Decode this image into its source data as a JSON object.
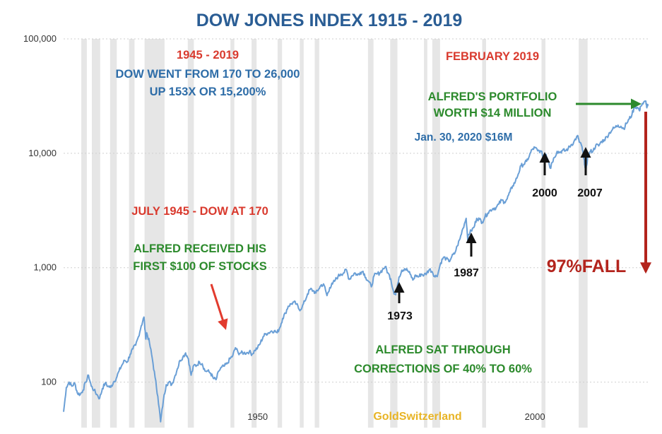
{
  "chart_data": {
    "type": "line",
    "title": "DOW JONES INDEX  1915 - 2019",
    "y_scale": "log",
    "ylim": [
      40,
      100000
    ],
    "xlim": [
      1915,
      2020.5
    ],
    "yticks": [
      {
        "value": 100,
        "label": "100"
      },
      {
        "value": 1000,
        "label": "1,000"
      },
      {
        "value": 10000,
        "label": "10,000"
      },
      {
        "value": 100000,
        "label": "100,000"
      }
    ],
    "xticks": [
      {
        "value": 1950,
        "label": "1950"
      },
      {
        "value": 2000,
        "label": "2000"
      }
    ],
    "grid": true,
    "line_color": "#6a9fd6",
    "series": [
      {
        "points": [
          [
            1915.0,
            55
          ],
          [
            1915.5,
            90
          ],
          [
            1916.0,
            100
          ],
          [
            1916.5,
            92
          ],
          [
            1917.0,
            98
          ],
          [
            1917.5,
            80
          ],
          [
            1918.0,
            78
          ],
          [
            1918.5,
            85
          ],
          [
            1919.0,
            100
          ],
          [
            1919.5,
            115
          ],
          [
            1920.0,
            92
          ],
          [
            1920.5,
            85
          ],
          [
            1921.0,
            78
          ],
          [
            1921.5,
            72
          ],
          [
            1922.0,
            88
          ],
          [
            1922.5,
            98
          ],
          [
            1923.0,
            92
          ],
          [
            1923.5,
            90
          ],
          [
            1924.0,
            100
          ],
          [
            1924.5,
            108
          ],
          [
            1925.0,
            125
          ],
          [
            1925.5,
            140
          ],
          [
            1926.0,
            155
          ],
          [
            1926.5,
            150
          ],
          [
            1927.0,
            175
          ],
          [
            1927.5,
            195
          ],
          [
            1928.0,
            210
          ],
          [
            1928.5,
            250
          ],
          [
            1929.0,
            310
          ],
          [
            1929.5,
            370
          ],
          [
            1929.8,
            240
          ],
          [
            1930.0,
            270
          ],
          [
            1930.5,
            220
          ],
          [
            1931.0,
            160
          ],
          [
            1931.5,
            110
          ],
          [
            1932.0,
            75
          ],
          [
            1932.5,
            45
          ],
          [
            1933.0,
            70
          ],
          [
            1933.5,
            95
          ],
          [
            1934.0,
            100
          ],
          [
            1934.5,
            95
          ],
          [
            1935.0,
            110
          ],
          [
            1935.5,
            130
          ],
          [
            1936.0,
            155
          ],
          [
            1936.5,
            165
          ],
          [
            1937.0,
            180
          ],
          [
            1937.5,
            160
          ],
          [
            1938.0,
            115
          ],
          [
            1938.5,
            140
          ],
          [
            1939.0,
            140
          ],
          [
            1939.5,
            150
          ],
          [
            1940.0,
            145
          ],
          [
            1940.5,
            125
          ],
          [
            1941.0,
            125
          ],
          [
            1941.5,
            120
          ],
          [
            1942.0,
            108
          ],
          [
            1942.5,
            105
          ],
          [
            1943.0,
            125
          ],
          [
            1943.5,
            135
          ],
          [
            1944.0,
            138
          ],
          [
            1944.5,
            145
          ],
          [
            1945.0,
            160
          ],
          [
            1945.5,
            170
          ],
          [
            1946.0,
            200
          ],
          [
            1946.5,
            180
          ],
          [
            1947.0,
            180
          ],
          [
            1947.5,
            180
          ],
          [
            1948.0,
            180
          ],
          [
            1948.5,
            185
          ],
          [
            1949.0,
            175
          ],
          [
            1949.5,
            190
          ],
          [
            1950.0,
            200
          ],
          [
            1950.5,
            220
          ],
          [
            1951.0,
            250
          ],
          [
            1951.5,
            265
          ],
          [
            1952.0,
            270
          ],
          [
            1952.5,
            280
          ],
          [
            1953.0,
            280
          ],
          [
            1953.5,
            270
          ],
          [
            1954.0,
            300
          ],
          [
            1954.5,
            360
          ],
          [
            1955.0,
            400
          ],
          [
            1955.5,
            460
          ],
          [
            1956.0,
            480
          ],
          [
            1956.5,
            500
          ],
          [
            1957.0,
            480
          ],
          [
            1957.5,
            430
          ],
          [
            1958.0,
            450
          ],
          [
            1958.5,
            510
          ],
          [
            1959.0,
            590
          ],
          [
            1959.5,
            650
          ],
          [
            1960.0,
            630
          ],
          [
            1960.5,
            600
          ],
          [
            1961.0,
            650
          ],
          [
            1961.5,
            710
          ],
          [
            1962.0,
            700
          ],
          [
            1962.5,
            570
          ],
          [
            1963.0,
            670
          ],
          [
            1963.5,
            720
          ],
          [
            1964.0,
            780
          ],
          [
            1964.5,
            840
          ],
          [
            1965.0,
            880
          ],
          [
            1965.5,
            900
          ],
          [
            1966.0,
            960
          ],
          [
            1966.5,
            790
          ],
          [
            1967.0,
            850
          ],
          [
            1967.5,
            900
          ],
          [
            1968.0,
            860
          ],
          [
            1968.5,
            910
          ],
          [
            1969.0,
            930
          ],
          [
            1969.5,
            820
          ],
          [
            1970.0,
            760
          ],
          [
            1970.5,
            680
          ],
          [
            1971.0,
            850
          ],
          [
            1971.5,
            880
          ],
          [
            1972.0,
            900
          ],
          [
            1972.5,
            960
          ],
          [
            1973.0,
            1020
          ],
          [
            1973.5,
            900
          ],
          [
            1974.0,
            800
          ],
          [
            1974.5,
            620
          ],
          [
            1974.9,
            580
          ],
          [
            1975.0,
            640
          ],
          [
            1975.5,
            830
          ],
          [
            1976.0,
            950
          ],
          [
            1976.5,
            980
          ],
          [
            1977.0,
            950
          ],
          [
            1977.5,
            880
          ],
          [
            1978.0,
            780
          ],
          [
            1978.5,
            860
          ],
          [
            1979.0,
            830
          ],
          [
            1979.5,
            880
          ],
          [
            1980.0,
            860
          ],
          [
            1980.5,
            900
          ],
          [
            1981.0,
            970
          ],
          [
            1981.5,
            920
          ],
          [
            1982.0,
            830
          ],
          [
            1982.5,
            880
          ],
          [
            1983.0,
            1100
          ],
          [
            1983.5,
            1230
          ],
          [
            1984.0,
            1200
          ],
          [
            1984.5,
            1130
          ],
          [
            1985.0,
            1250
          ],
          [
            1985.5,
            1320
          ],
          [
            1986.0,
            1550
          ],
          [
            1986.5,
            1800
          ],
          [
            1987.0,
            2200
          ],
          [
            1987.6,
            2700
          ],
          [
            1987.9,
            1750
          ],
          [
            1988.0,
            1950
          ],
          [
            1988.5,
            2100
          ],
          [
            1989.0,
            2250
          ],
          [
            1989.5,
            2700
          ],
          [
            1990.0,
            2650
          ],
          [
            1990.5,
            2500
          ],
          [
            1991.0,
            2800
          ],
          [
            1991.5,
            3000
          ],
          [
            1992.0,
            3200
          ],
          [
            1992.5,
            3300
          ],
          [
            1993.0,
            3350
          ],
          [
            1993.5,
            3600
          ],
          [
            1994.0,
            3900
          ],
          [
            1994.5,
            3750
          ],
          [
            1995.0,
            4000
          ],
          [
            1995.5,
            4600
          ],
          [
            1996.0,
            5200
          ],
          [
            1996.5,
            5700
          ],
          [
            1997.0,
            6600
          ],
          [
            1997.5,
            7800
          ],
          [
            1998.0,
            8000
          ],
          [
            1998.5,
            8500
          ],
          [
            1999.0,
            9500
          ],
          [
            1999.5,
            10800
          ],
          [
            2000.0,
            11200
          ],
          [
            2000.5,
            10500
          ],
          [
            2001.0,
            10500
          ],
          [
            2001.5,
            9500
          ],
          [
            2002.0,
            9800
          ],
          [
            2002.5,
            8500
          ],
          [
            2002.8,
            7400
          ],
          [
            2003.0,
            8200
          ],
          [
            2003.5,
            9200
          ],
          [
            2004.0,
            10400
          ],
          [
            2004.5,
            10200
          ],
          [
            2005.0,
            10600
          ],
          [
            2005.5,
            10500
          ],
          [
            2006.0,
            11000
          ],
          [
            2006.5,
            11800
          ],
          [
            2007.0,
            12500
          ],
          [
            2007.5,
            13800
          ],
          [
            2007.8,
            13900
          ],
          [
            2008.0,
            12500
          ],
          [
            2008.5,
            11400
          ],
          [
            2008.8,
            9000
          ],
          [
            2009.0,
            8000
          ],
          [
            2009.2,
            7000
          ],
          [
            2009.5,
            9200
          ],
          [
            2010.0,
            10400
          ],
          [
            2010.5,
            10500
          ],
          [
            2011.0,
            11800
          ],
          [
            2011.5,
            11600
          ],
          [
            2012.0,
            12700
          ],
          [
            2012.5,
            13100
          ],
          [
            2013.0,
            14000
          ],
          [
            2013.5,
            15200
          ],
          [
            2014.0,
            16200
          ],
          [
            2014.5,
            16900
          ],
          [
            2015.0,
            17600
          ],
          [
            2015.5,
            17200
          ],
          [
            2016.0,
            16400
          ],
          [
            2016.5,
            18200
          ],
          [
            2017.0,
            19900
          ],
          [
            2017.5,
            21800
          ],
          [
            2018.0,
            25800
          ],
          [
            2018.5,
            25200
          ],
          [
            2018.9,
            23500
          ],
          [
            2019.0,
            25500
          ],
          [
            2019.5,
            27000
          ],
          [
            2020.0,
            28600
          ],
          [
            2020.2,
            25000
          ],
          [
            2020.4,
            26000
          ]
        ]
      }
    ],
    "recession_bands": [
      [
        1918.2,
        1919.2
      ],
      [
        1920.1,
        1921.6
      ],
      [
        1923.4,
        1924.6
      ],
      [
        1926.8,
        1927.8
      ],
      [
        1929.6,
        1933.2
      ],
      [
        1937.4,
        1938.5
      ],
      [
        1945.1,
        1945.8
      ],
      [
        1948.9,
        1949.8
      ],
      [
        1953.6,
        1954.4
      ],
      [
        1957.6,
        1958.3
      ],
      [
        1960.3,
        1961.1
      ],
      [
        1969.9,
        1970.9
      ],
      [
        1973.9,
        1975.2
      ],
      [
        1980.0,
        1980.6
      ],
      [
        1981.5,
        1982.9
      ],
      [
        1990.5,
        1991.2
      ],
      [
        2001.2,
        2001.9
      ],
      [
        2007.9,
        2009.5
      ]
    ],
    "annotations": {
      "period_label": "1945 - 2019",
      "period_line1": "DOW WENT FROM 170 TO 26,000",
      "period_line2": "UP 153X OR 15,200%",
      "feb_label": "FEBRUARY 2019",
      "portfolio_line1": "ALFRED'S PORTFOLIO",
      "portfolio_line2": "WORTH $14 MILLION",
      "jan_label": "Jan. 30, 2020 $16M",
      "july_label": "JULY 1945 - DOW AT 170",
      "received_line1": "ALFRED RECEIVED HIS",
      "received_line2": "FIRST $100 OF STOCKS",
      "sat_line1": "ALFRED SAT THROUGH",
      "sat_line2": "CORRECTIONS OF 40% TO 60%",
      "fall_label": "97%FALL",
      "year_1973": "1973",
      "year_1987": "1987",
      "year_2000": "2000",
      "year_2007": "2007",
      "watermark": "GoldSwitzerland"
    }
  }
}
